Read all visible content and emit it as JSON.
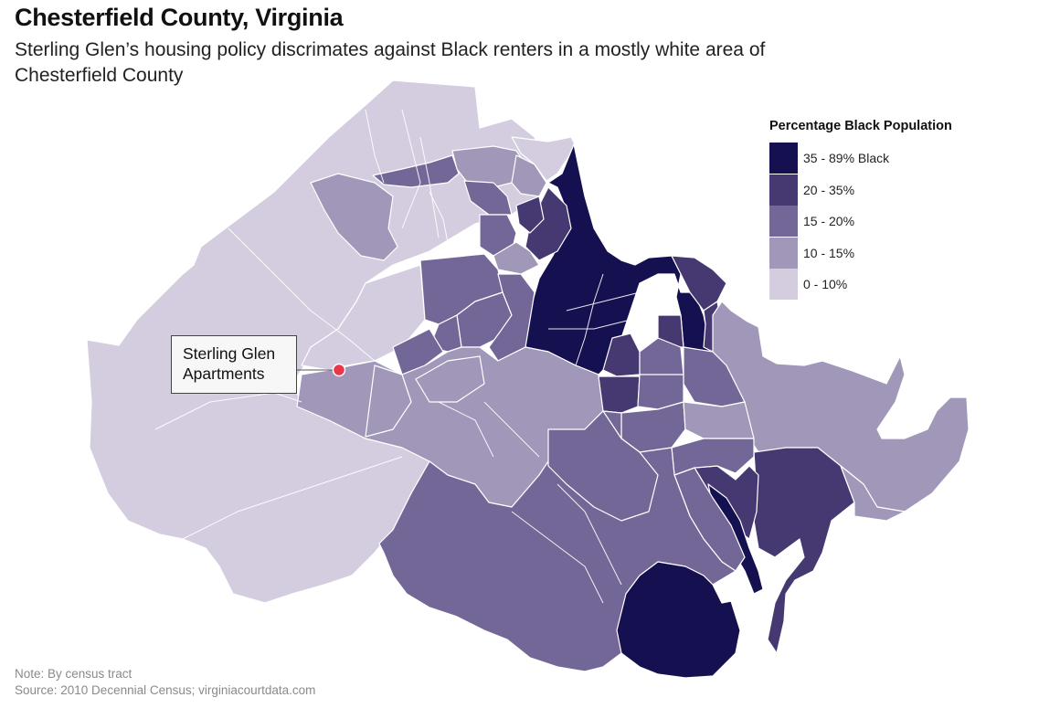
{
  "header": {
    "title": "Chesterfield County, Virginia",
    "subtitle": "Sterling Glen’s housing policy discrimates against Black renters in a mostly white area of Chesterfield County"
  },
  "legend": {
    "title": "Percentage Black Population",
    "items": [
      {
        "label": "35 - 89% Black",
        "color": "#15104f"
      },
      {
        "label": "20 - 35%",
        "color": "#463972"
      },
      {
        "label": "15 - 20%",
        "color": "#736797"
      },
      {
        "label": "10 - 15%",
        "color": "#a097b9"
      },
      {
        "label": "0 - 10%",
        "color": "#d3cddf"
      }
    ]
  },
  "callout": {
    "line1": "Sterling Glen",
    "line2": "Apartments",
    "marker_color": "#e8394a"
  },
  "footer": {
    "note": "Note: By census tract",
    "source": "Source: 2010 Decennial Census; virginiacourtdata.com"
  }
}
